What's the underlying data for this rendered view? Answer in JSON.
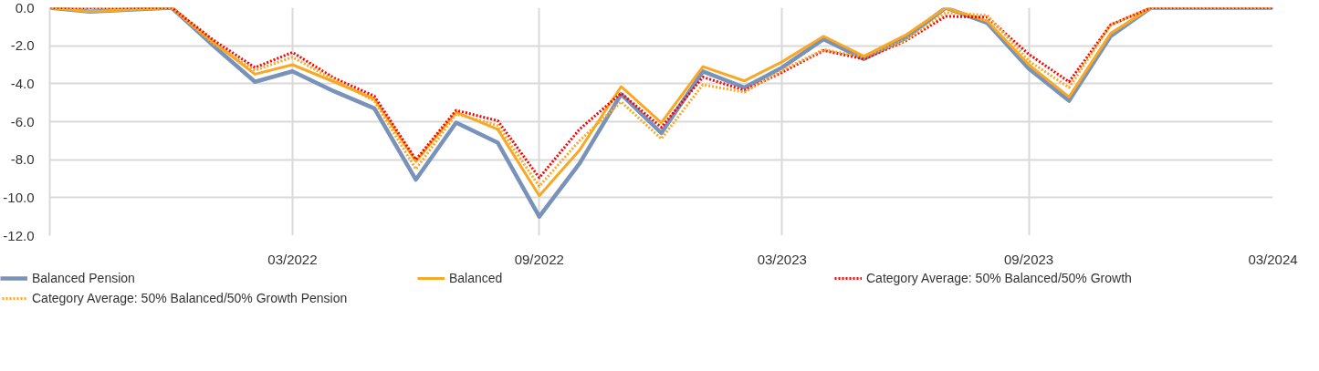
{
  "chart_data": {
    "type": "line",
    "x": [
      "2021-09",
      "2021-10",
      "2021-11",
      "2021-12",
      "2022-01",
      "2022-02",
      "2022-03",
      "2022-04",
      "2022-05",
      "2022-06",
      "2022-07",
      "2022-08",
      "2022-09",
      "2022-10",
      "2022-11",
      "2022-12",
      "2023-01",
      "2023-02",
      "2023-03",
      "2023-04",
      "2023-05",
      "2023-06",
      "2023-07",
      "2023-08",
      "2023-09",
      "2023-10",
      "2023-11",
      "2023-12",
      "2024-01",
      "2024-02",
      "2024-03"
    ],
    "series": [
      {
        "name": "Balanced Pension",
        "color": "#7892ba",
        "line_style": "solid",
        "values": [
          0,
          -0.2,
          -0.1,
          0,
          -2.0,
          -3.9,
          -3.35,
          -4.4,
          -5.3,
          -9.05,
          -6.05,
          -7.1,
          -11.0,
          -8.2,
          -4.55,
          -6.6,
          -3.35,
          -4.2,
          -3.15,
          -1.65,
          -2.7,
          -1.6,
          0,
          -0.8,
          -3.2,
          -4.9,
          -1.5,
          0,
          0,
          0,
          0
        ]
      },
      {
        "name": "Balanced",
        "color": "#f9a825",
        "line_style": "solid",
        "values": [
          0,
          -0.2,
          -0.1,
          0,
          -1.8,
          -3.5,
          -3.0,
          -3.9,
          -4.8,
          -8.1,
          -5.5,
          -6.4,
          -9.9,
          -7.5,
          -4.15,
          -6.05,
          -3.1,
          -3.85,
          -2.85,
          -1.5,
          -2.55,
          -1.45,
          0,
          -0.7,
          -3.0,
          -4.7,
          -1.35,
          0,
          0,
          0,
          0
        ]
      },
      {
        "name": "Category Average: 50% Balanced/50% Growth",
        "color": "#ff0000",
        "line_style": "dotted",
        "values": [
          0,
          0,
          0,
          0,
          -1.7,
          -3.15,
          -2.35,
          -3.7,
          -4.65,
          -8.0,
          -5.4,
          -5.95,
          -8.95,
          -6.4,
          -4.5,
          -6.3,
          -3.65,
          -4.35,
          -3.4,
          -2.25,
          -2.7,
          -1.75,
          -0.45,
          -0.5,
          -2.45,
          -3.9,
          -0.9,
          0,
          0,
          0,
          0
        ]
      },
      {
        "name": "Category Average: 50% Balanced/50% Growth Pension",
        "color": "#f9a825",
        "line_style": "dotted",
        "values": [
          0,
          0,
          0,
          0,
          -1.9,
          -3.3,
          -2.6,
          -3.8,
          -4.9,
          -8.5,
          -5.6,
          -6.2,
          -9.4,
          -7.0,
          -4.95,
          -6.9,
          -4.05,
          -4.45,
          -3.3,
          -2.2,
          -2.6,
          -1.7,
          -0.25,
          -0.4,
          -2.8,
          -4.2,
          -0.9,
          0,
          0,
          0,
          0
        ]
      }
    ],
    "xlim": [
      "2021-09",
      "2024-03"
    ],
    "xticks": [
      {
        "value": "2021-09",
        "label": null
      },
      {
        "value": "2022-03",
        "label": "03/2022"
      },
      {
        "value": "2022-09",
        "label": "09/2022"
      },
      {
        "value": "2023-03",
        "label": "03/2023"
      },
      {
        "value": "2023-09",
        "label": "09/2023"
      },
      {
        "value": "2024-03",
        "label": "03/2024"
      }
    ],
    "ylim": [
      -12,
      0
    ],
    "yticks": [
      {
        "value": 0,
        "label": "0.0"
      },
      {
        "value": -2,
        "label": "-2.0"
      },
      {
        "value": -4,
        "label": "-4.0"
      },
      {
        "value": -6,
        "label": "-6.0"
      },
      {
        "value": -8,
        "label": "-8.0"
      },
      {
        "value": -10,
        "label": "-10.0"
      },
      {
        "value": -12,
        "label": "-12.0"
      }
    ],
    "grid": true,
    "legend": "bottom",
    "marker": "none"
  }
}
